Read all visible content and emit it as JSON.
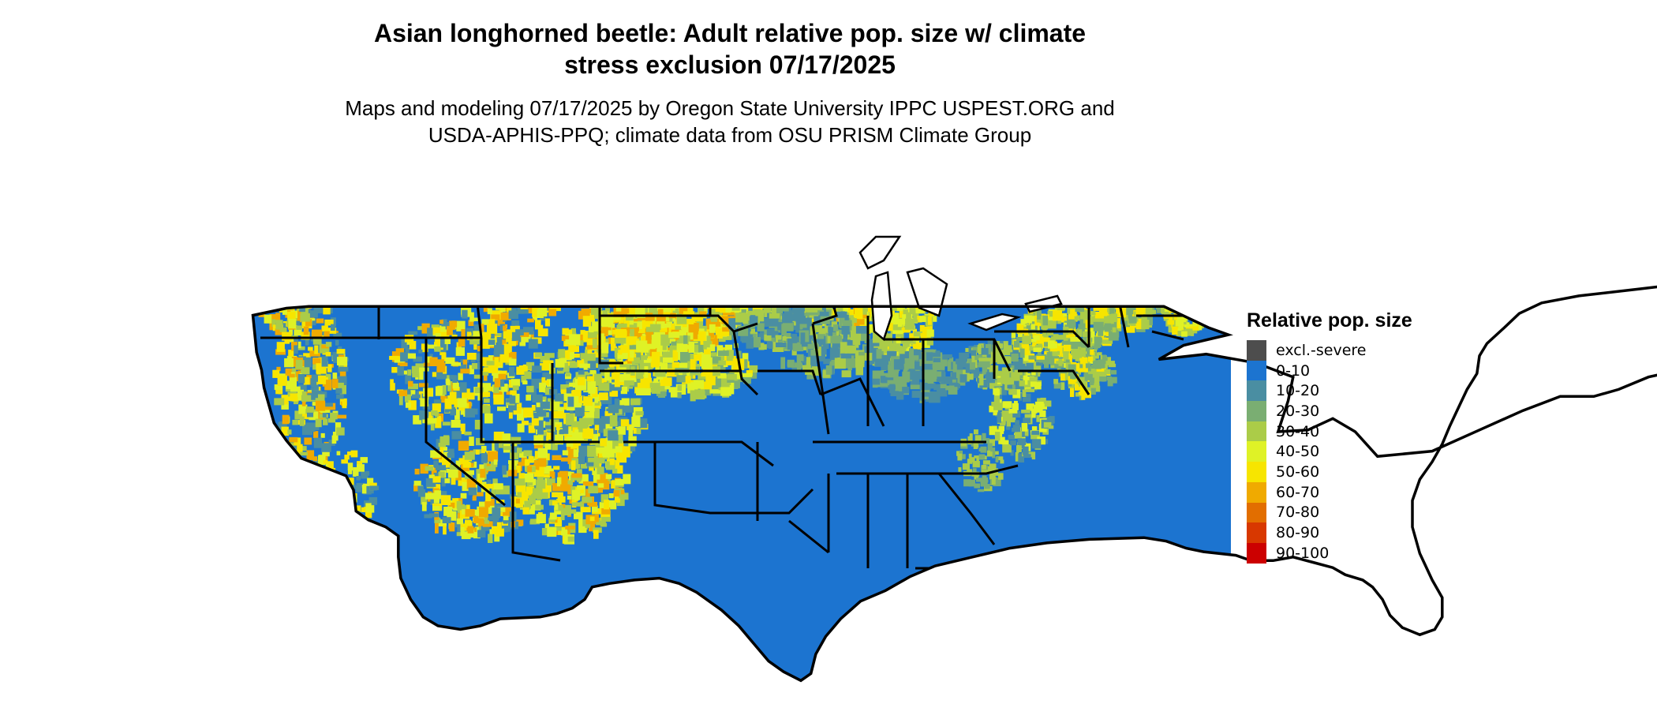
{
  "title": {
    "line1": "Asian longhorned beetle: Adult relative pop. size w/ climate",
    "line2": "stress exclusion 07/17/2025"
  },
  "subtitle": {
    "line1": "Maps and modeling 07/17/2025 by Oregon State University IPPC USPEST.ORG and",
    "line2": "USDA-APHIS-PPQ; climate data from OSU PRISM Climate Group"
  },
  "legend": {
    "title": "Relative pop. size",
    "items": [
      {
        "label": "excl.-severe",
        "color": "#4d4d4d"
      },
      {
        "label": "0-10",
        "color": "#1c74d0"
      },
      {
        "label": "10-20",
        "color": "#4a8ea2"
      },
      {
        "label": "20-30",
        "color": "#7aae72"
      },
      {
        "label": "30-40",
        "color": "#abcc48"
      },
      {
        "label": "40-50",
        "color": "#dff226"
      },
      {
        "label": "50-60",
        "color": "#f7e500"
      },
      {
        "label": "60-70",
        "color": "#f0aa00"
      },
      {
        "label": "70-80",
        "color": "#e26e00"
      },
      {
        "label": "80-90",
        "color": "#d83800"
      },
      {
        "label": "90-100",
        "color": "#cc0000"
      }
    ]
  }
}
